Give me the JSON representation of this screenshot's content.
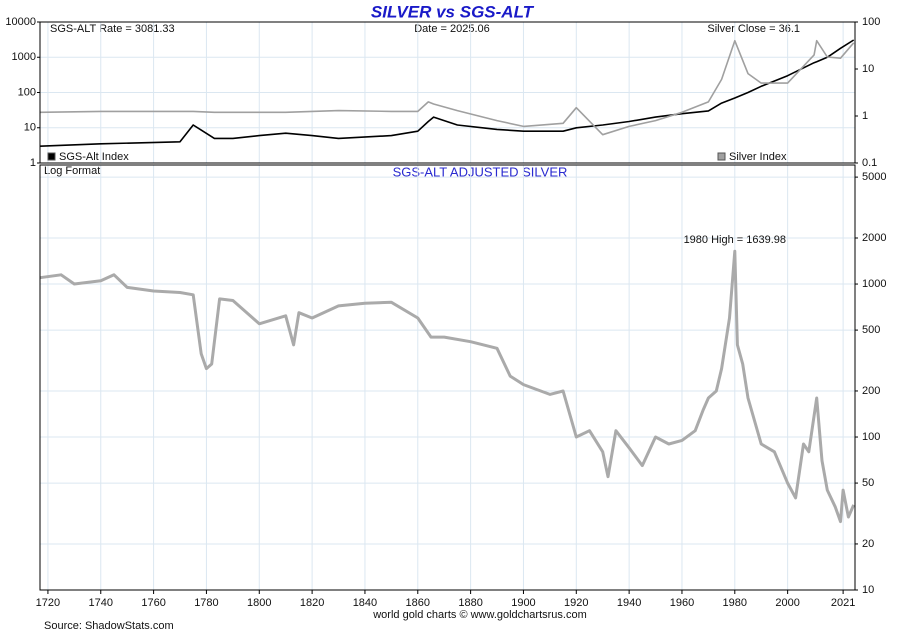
{
  "chart_data": [
    {
      "type": "line",
      "title": "SILVER vs SGS-ALT",
      "labels": [
        "SGS-ALT Rate = 3081.33",
        "Date = 2025.06",
        "Silver Close = 36.1"
      ],
      "xlim": [
        1717,
        2025.5
      ],
      "x": [
        1717,
        1740,
        1770,
        1775,
        1783,
        1790,
        1800,
        1810,
        1820,
        1830,
        1850,
        1860,
        1864,
        1866,
        1875,
        1890,
        1900,
        1915,
        1920,
        1930,
        1940,
        1950,
        1960,
        1970,
        1975,
        1980,
        1985,
        1990,
        2000,
        2010,
        2011,
        2015,
        2020,
        2025
      ],
      "ylim": [
        1,
        10000
      ],
      "yticks": [
        1,
        10,
        100,
        1000,
        10000
      ],
      "y2lim": [
        0.1,
        100
      ],
      "y2ticks": [
        0.1,
        1,
        10,
        100
      ],
      "log_scale": true,
      "grid": true,
      "series": [
        {
          "name": "SGS-Alt Index",
          "color": "#000000",
          "axis": "y",
          "values": [
            3,
            3.5,
            4,
            12,
            5,
            5,
            6,
            7,
            6,
            5,
            6,
            8,
            15,
            20,
            12,
            9,
            8,
            8,
            10,
            12,
            15,
            20,
            25,
            30,
            50,
            70,
            100,
            150,
            300,
            700,
            750,
            1000,
            1800,
            3081.33
          ]
        },
        {
          "name": "Silver Index",
          "color": "#a0a0a0",
          "axis": "y2",
          "values": [
            1.2,
            1.25,
            1.25,
            1.25,
            1.2,
            1.2,
            1.2,
            1.2,
            1.25,
            1.3,
            1.25,
            1.25,
            2,
            1.8,
            1.3,
            0.8,
            0.6,
            0.7,
            1.5,
            0.4,
            0.6,
            0.8,
            1.2,
            2,
            6,
            40,
            8,
            5,
            5,
            20,
            40,
            18,
            17,
            36.1
          ]
        }
      ]
    },
    {
      "type": "line",
      "title": "SGS-ALT ADJUSTED  SILVER",
      "scale_label": "Log Format",
      "annotation": "1980 High = 1639.98",
      "xlim": [
        1717,
        2025.5
      ],
      "xticks": [
        1720,
        1740,
        1760,
        1780,
        1800,
        1820,
        1840,
        1860,
        1880,
        1900,
        1920,
        1940,
        1960,
        1980,
        2000,
        2021
      ],
      "ylim": [
        10,
        6000
      ],
      "yticks": [
        10,
        20,
        50,
        100,
        200,
        500,
        1000,
        2000,
        5000
      ],
      "log_scale": true,
      "grid": true,
      "x": [
        1717,
        1725,
        1730,
        1740,
        1745,
        1750,
        1760,
        1770,
        1775,
        1778,
        1780,
        1782,
        1785,
        1790,
        1800,
        1810,
        1813,
        1815,
        1820,
        1830,
        1840,
        1850,
        1860,
        1865,
        1870,
        1880,
        1890,
        1895,
        1900,
        1910,
        1915,
        1920,
        1925,
        1930,
        1932,
        1935,
        1940,
        1945,
        1950,
        1955,
        1960,
        1965,
        1968,
        1970,
        1973,
        1975,
        1978,
        1980,
        1981,
        1983,
        1985,
        1990,
        1995,
        2000,
        2003,
        2006,
        2008,
        2011,
        2013,
        2015,
        2018,
        2020,
        2021,
        2023,
        2025
      ],
      "series": [
        {
          "name": "SGS-ALT Adjusted Silver",
          "color": "#aaaaaa",
          "values": [
            1100,
            1150,
            1000,
            1050,
            1150,
            950,
            900,
            880,
            850,
            350,
            280,
            300,
            800,
            780,
            550,
            620,
            400,
            650,
            600,
            720,
            750,
            760,
            600,
            450,
            450,
            420,
            380,
            250,
            220,
            190,
            200,
            100,
            110,
            80,
            55,
            110,
            85,
            65,
            100,
            90,
            95,
            110,
            150,
            180,
            200,
            280,
            600,
            1639.98,
            400,
            300,
            180,
            90,
            80,
            50,
            40,
            90,
            80,
            180,
            70,
            45,
            35,
            28,
            45,
            30,
            36
          ]
        }
      ]
    },
    {
      "footer": "world gold charts © www.goldchartsrus.com",
      "source": "Source: ShadowStats.com"
    }
  ]
}
